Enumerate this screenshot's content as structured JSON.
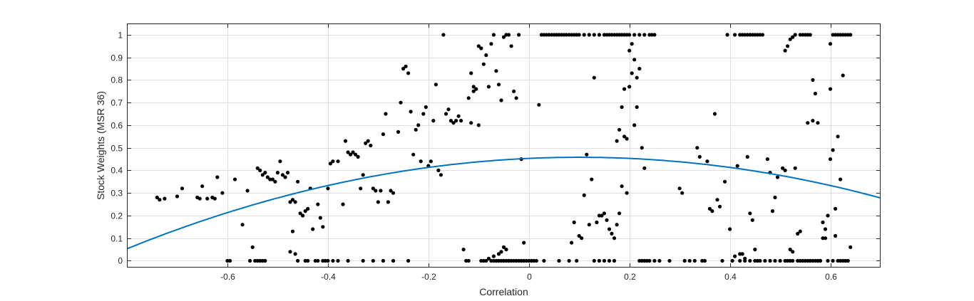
{
  "chart_data": {
    "type": "scatter",
    "title": "",
    "xlabel": "Correlation",
    "ylabel": "Stock Weights (MSR 36)",
    "xlim": [
      -0.8,
      0.7
    ],
    "ylim": [
      -0.03,
      1.05
    ],
    "xticks": [
      -0.6,
      -0.4,
      -0.2,
      0,
      0.2,
      0.4,
      0.6
    ],
    "xtick_labels": [
      "-0.6",
      "-0.4",
      "-0.2",
      "0",
      "0.2",
      "0.4",
      "0.6"
    ],
    "yticks": [
      0,
      0.1,
      0.2,
      0.3,
      0.4,
      0.5,
      0.6,
      0.7,
      0.8,
      0.9,
      1
    ],
    "ytick_labels": [
      "0",
      "0.1",
      "0.2",
      "0.3",
      "0.4",
      "0.5",
      "0.6",
      "0.7",
      "0.8",
      "0.9",
      "1"
    ],
    "grid": true,
    "marker_color": "#000000",
    "fit_color": "#0072BD",
    "fit_quadratic": {
      "a": -0.5,
      "b": 0.1,
      "c": 0.458
    },
    "points": [
      [
        -0.74,
        0.28
      ],
      [
        -0.735,
        0.27
      ],
      [
        -0.725,
        0.275
      ],
      [
        -0.7,
        0.285
      ],
      [
        -0.69,
        0.32
      ],
      [
        -0.66,
        0.28
      ],
      [
        -0.655,
        0.275
      ],
      [
        -0.65,
        0.33
      ],
      [
        -0.64,
        0.275
      ],
      [
        -0.63,
        0.28
      ],
      [
        -0.625,
        0.275
      ],
      [
        -0.62,
        0.37
      ],
      [
        -0.61,
        0.3
      ],
      [
        -0.6,
        0.0
      ],
      [
        -0.595,
        0.0
      ],
      [
        -0.585,
        0.36
      ],
      [
        -0.57,
        0.16
      ],
      [
        -0.56,
        0.31
      ],
      [
        -0.555,
        0.0
      ],
      [
        -0.55,
        0.06
      ],
      [
        -0.545,
        0.0
      ],
      [
        -0.54,
        0.0
      ],
      [
        -0.535,
        0.0
      ],
      [
        -0.53,
        0.0
      ],
      [
        -0.525,
        0.0
      ],
      [
        -0.54,
        0.41
      ],
      [
        -0.535,
        0.4
      ],
      [
        -0.53,
        0.38
      ],
      [
        -0.525,
        0.39
      ],
      [
        -0.52,
        0.37
      ],
      [
        -0.515,
        0.36
      ],
      [
        -0.51,
        0.36
      ],
      [
        -0.505,
        0.35
      ],
      [
        -0.5,
        0.39
      ],
      [
        -0.495,
        0.44
      ],
      [
        -0.49,
        0.38
      ],
      [
        -0.485,
        0.37
      ],
      [
        -0.48,
        0.39
      ],
      [
        -0.475,
        0.26
      ],
      [
        -0.47,
        0.27
      ],
      [
        -0.465,
        0.26
      ],
      [
        -0.46,
        0.35
      ],
      [
        -0.455,
        0.21
      ],
      [
        -0.45,
        0.2
      ],
      [
        -0.445,
        0.22
      ],
      [
        -0.44,
        0.23
      ],
      [
        -0.435,
        0.32
      ],
      [
        -0.43,
        0.14
      ],
      [
        -0.425,
        0.0
      ],
      [
        -0.42,
        0.0
      ],
      [
        -0.41,
        0.0
      ],
      [
        -0.405,
        0.0
      ],
      [
        -0.4,
        0.0
      ],
      [
        -0.39,
        0.0
      ],
      [
        -0.44,
        0.0
      ],
      [
        -0.445,
        0.0
      ],
      [
        -0.47,
        0.13
      ],
      [
        -0.475,
        0.04
      ],
      [
        -0.465,
        0.03
      ],
      [
        -0.46,
        0.0
      ],
      [
        -0.42,
        0.25
      ],
      [
        -0.415,
        0.19
      ],
      [
        -0.41,
        0.15
      ],
      [
        -0.4,
        0.32
      ],
      [
        -0.395,
        0.43
      ],
      [
        -0.39,
        0.44
      ],
      [
        -0.38,
        0.44
      ],
      [
        -0.37,
        0.25
      ],
      [
        -0.365,
        0.53
      ],
      [
        -0.36,
        0.48
      ],
      [
        -0.355,
        0.47
      ],
      [
        -0.35,
        0.48
      ],
      [
        -0.345,
        0.47
      ],
      [
        -0.34,
        0.46
      ],
      [
        -0.335,
        0.32
      ],
      [
        -0.33,
        0.38
      ],
      [
        -0.325,
        0.52
      ],
      [
        -0.32,
        0.53
      ],
      [
        -0.315,
        0.51
      ],
      [
        -0.31,
        0.32
      ],
      [
        -0.305,
        0.31
      ],
      [
        -0.3,
        0.26
      ],
      [
        -0.295,
        0.31
      ],
      [
        -0.29,
        0.56
      ],
      [
        -0.285,
        0.65
      ],
      [
        -0.28,
        0.26
      ],
      [
        -0.275,
        0.31
      ],
      [
        -0.27,
        0.3
      ],
      [
        -0.38,
        0.0
      ],
      [
        -0.36,
        0.0
      ],
      [
        -0.33,
        0.0
      ],
      [
        -0.31,
        0.0
      ],
      [
        -0.29,
        0.0
      ],
      [
        -0.27,
        0.0
      ],
      [
        -0.24,
        0.0
      ],
      [
        -0.26,
        0.57
      ],
      [
        -0.255,
        0.7
      ],
      [
        -0.25,
        0.85
      ],
      [
        -0.245,
        0.86
      ],
      [
        -0.24,
        0.83
      ],
      [
        -0.235,
        0.66
      ],
      [
        -0.23,
        0.47
      ],
      [
        -0.225,
        0.58
      ],
      [
        -0.22,
        0.6
      ],
      [
        -0.215,
        0.44
      ],
      [
        -0.21,
        0.65
      ],
      [
        -0.205,
        0.68
      ],
      [
        -0.2,
        0.42
      ],
      [
        -0.195,
        0.44
      ],
      [
        -0.19,
        0.62
      ],
      [
        -0.185,
        0.78
      ],
      [
        -0.18,
        0.4
      ],
      [
        -0.175,
        0.38
      ],
      [
        -0.17,
        1.0
      ],
      [
        -0.165,
        0.65
      ],
      [
        -0.16,
        0.67
      ],
      [
        -0.155,
        0.62
      ],
      [
        -0.15,
        0.61
      ],
      [
        -0.145,
        0.62
      ],
      [
        -0.14,
        0.64
      ],
      [
        -0.135,
        0.62
      ],
      [
        -0.13,
        0.05
      ],
      [
        -0.125,
        0.0
      ],
      [
        -0.12,
        0.0
      ],
      [
        -0.115,
        0.61
      ],
      [
        -0.11,
        0.75
      ],
      [
        -0.105,
        0.76
      ],
      [
        -0.1,
        0.6
      ],
      [
        -0.095,
        0.0
      ],
      [
        -0.09,
        0.0
      ],
      [
        -0.085,
        0.0
      ],
      [
        -0.08,
        0.01
      ],
      [
        -0.075,
        0.0
      ],
      [
        -0.07,
        0.02
      ],
      [
        -0.065,
        0.0
      ],
      [
        -0.06,
        0.03
      ],
      [
        -0.055,
        0.0
      ],
      [
        -0.05,
        0.0
      ],
      [
        -0.045,
        0.0
      ],
      [
        -0.04,
        0.0
      ],
      [
        -0.12,
        0.72
      ],
      [
        -0.115,
        0.83
      ],
      [
        -0.11,
        0.77
      ],
      [
        -0.1,
        0.95
      ],
      [
        -0.095,
        0.94
      ],
      [
        -0.09,
        0.87
      ],
      [
        -0.085,
        0.91
      ],
      [
        -0.08,
        0.77
      ],
      [
        -0.075,
        0.96
      ],
      [
        -0.07,
        1.0
      ],
      [
        -0.065,
        0.0
      ],
      [
        -0.06,
        0.0
      ],
      [
        -0.055,
        0.04
      ],
      [
        -0.05,
        0.06
      ],
      [
        -0.045,
        0.05
      ],
      [
        -0.04,
        0.0
      ],
      [
        -0.035,
        0.0
      ],
      [
        -0.03,
        0.0
      ],
      [
        -0.025,
        0.0
      ],
      [
        -0.02,
        0.0
      ],
      [
        -0.015,
        0.0
      ],
      [
        -0.01,
        0.0
      ],
      [
        -0.07,
        0.0
      ],
      [
        -0.065,
        0.84
      ],
      [
        -0.06,
        0.78
      ],
      [
        -0.055,
        0.71
      ],
      [
        -0.05,
        0.99
      ],
      [
        -0.045,
        1.0
      ],
      [
        -0.04,
        1.0
      ],
      [
        -0.035,
        0.95
      ],
      [
        -0.03,
        0.75
      ],
      [
        -0.025,
        0.72
      ],
      [
        -0.02,
        1.0
      ],
      [
        -0.015,
        0.45
      ],
      [
        -0.01,
        0.08
      ],
      [
        -0.005,
        0.0
      ],
      [
        0.0,
        0.0
      ],
      [
        0.005,
        0.0
      ],
      [
        0.01,
        0.0
      ],
      [
        0.015,
        0.0
      ],
      [
        0.02,
        0.69
      ],
      [
        0.025,
        1.0
      ],
      [
        0.03,
        1.0
      ],
      [
        0.035,
        1.0
      ],
      [
        0.04,
        1.0
      ],
      [
        0.045,
        1.0
      ],
      [
        0.05,
        1.0
      ],
      [
        0.055,
        1.0
      ],
      [
        0.06,
        1.0
      ],
      [
        0.065,
        1.0
      ],
      [
        0.07,
        1.0
      ],
      [
        0.075,
        1.0
      ],
      [
        0.08,
        1.0
      ],
      [
        0.085,
        1.0
      ],
      [
        0.09,
        1.0
      ],
      [
        0.095,
        1.0
      ],
      [
        -0.06,
        0.0
      ],
      [
        -0.05,
        0.0
      ],
      [
        -0.04,
        0.0
      ],
      [
        0.005,
        0.0
      ],
      [
        0.03,
        0.0
      ],
      [
        0.06,
        0.0
      ],
      [
        0.08,
        0.0
      ],
      [
        0.085,
        0.08
      ],
      [
        0.09,
        0.17
      ],
      [
        0.095,
        0.0
      ],
      [
        0.1,
        0.11
      ],
      [
        0.105,
        0.1
      ],
      [
        0.11,
        0.29
      ],
      [
        0.115,
        0.47
      ],
      [
        0.12,
        0.16
      ],
      [
        0.125,
        0.36
      ],
      [
        0.13,
        0.81
      ],
      [
        0.135,
        0.17
      ],
      [
        0.14,
        0.2
      ],
      [
        0.145,
        0.2
      ],
      [
        0.15,
        0.21
      ],
      [
        0.155,
        0.18
      ],
      [
        0.16,
        0.14
      ],
      [
        0.165,
        0.12
      ],
      [
        0.17,
        0.1
      ],
      [
        0.175,
        0.16
      ],
      [
        0.18,
        0.21
      ],
      [
        0.185,
        0.33
      ],
      [
        0.19,
        0.55
      ],
      [
        0.195,
        0.54
      ],
      [
        0.2,
        0.93
      ],
      [
        0.205,
        0.96
      ],
      [
        0.21,
        0.89
      ],
      [
        0.215,
        0.68
      ],
      [
        0.22,
        0.85
      ],
      [
        0.225,
        0.5
      ],
      [
        0.23,
        0.41
      ],
      [
        0.235,
        0.0
      ],
      [
        0.24,
        0.0
      ],
      [
        0.1,
        1.0
      ],
      [
        0.11,
        1.0
      ],
      [
        0.12,
        1.0
      ],
      [
        0.13,
        1.0
      ],
      [
        0.14,
        1.0
      ],
      [
        0.15,
        1.0
      ],
      [
        0.155,
        1.0
      ],
      [
        0.16,
        1.0
      ],
      [
        0.165,
        1.0
      ],
      [
        0.17,
        1.0
      ],
      [
        0.175,
        1.0
      ],
      [
        0.18,
        1.0
      ],
      [
        0.185,
        1.0
      ],
      [
        0.19,
        1.0
      ],
      [
        0.195,
        1.0
      ],
      [
        0.2,
        1.0
      ],
      [
        0.21,
        1.0
      ],
      [
        0.22,
        1.0
      ],
      [
        0.23,
        1.0
      ],
      [
        0.24,
        1.0
      ],
      [
        0.245,
        1.0
      ],
      [
        0.25,
        1.0
      ],
      [
        0.13,
        0.0
      ],
      [
        0.14,
        0.0
      ],
      [
        0.15,
        0.0
      ],
      [
        0.16,
        0.0
      ],
      [
        0.17,
        0.0
      ],
      [
        0.175,
        0.53
      ],
      [
        0.18,
        0.58
      ],
      [
        0.185,
        0.68
      ],
      [
        0.19,
        0.76
      ],
      [
        0.195,
        0.3
      ],
      [
        0.2,
        0.77
      ],
      [
        0.205,
        0.83
      ],
      [
        0.21,
        0.6
      ],
      [
        0.215,
        0.81
      ],
      [
        0.22,
        0.0
      ],
      [
        0.225,
        0.0
      ],
      [
        0.23,
        0.0
      ],
      [
        0.25,
        0.0
      ],
      [
        0.26,
        0.0
      ],
      [
        0.28,
        0.0
      ],
      [
        0.3,
        0.32
      ],
      [
        0.305,
        0.3
      ],
      [
        0.31,
        0.0
      ],
      [
        0.32,
        0.0
      ],
      [
        0.33,
        0.0
      ],
      [
        0.335,
        0.5
      ],
      [
        0.34,
        0.46
      ],
      [
        0.345,
        0.0
      ],
      [
        0.35,
        0.0
      ],
      [
        0.355,
        0.44
      ],
      [
        0.36,
        0.23
      ],
      [
        0.365,
        0.22
      ],
      [
        0.37,
        0.65
      ],
      [
        0.375,
        0.27
      ],
      [
        0.38,
        0.24
      ],
      [
        0.385,
        0.0
      ],
      [
        0.39,
        0.35
      ],
      [
        0.395,
        1.0
      ],
      [
        0.4,
        0.14
      ],
      [
        0.405,
        0.0
      ],
      [
        0.41,
        0.02
      ],
      [
        0.415,
        0.42
      ],
      [
        0.42,
        0.0
      ],
      [
        0.425,
        0.03
      ],
      [
        0.43,
        0.01
      ],
      [
        0.435,
        0.46
      ],
      [
        0.44,
        0.21
      ],
      [
        0.445,
        0.18
      ],
      [
        0.45,
        0.0
      ],
      [
        0.41,
        1.0
      ],
      [
        0.42,
        1.0
      ],
      [
        0.425,
        1.0
      ],
      [
        0.43,
        1.0
      ],
      [
        0.435,
        1.0
      ],
      [
        0.44,
        1.0
      ],
      [
        0.445,
        1.0
      ],
      [
        0.45,
        1.0
      ],
      [
        0.455,
        1.0
      ],
      [
        0.46,
        1.0
      ],
      [
        0.465,
        1.0
      ],
      [
        0.42,
        0.03
      ],
      [
        0.43,
        0.0
      ],
      [
        0.44,
        0.0
      ],
      [
        0.45,
        0.05
      ],
      [
        0.455,
        0.0
      ],
      [
        0.46,
        0.0
      ],
      [
        0.47,
        0.0
      ],
      [
        0.475,
        0.45
      ],
      [
        0.48,
        0.39
      ],
      [
        0.485,
        0.22
      ],
      [
        0.49,
        0.28
      ],
      [
        0.495,
        0.37
      ],
      [
        0.5,
        0.0
      ],
      [
        0.505,
        0.41
      ],
      [
        0.51,
        0.4
      ],
      [
        0.515,
        0.0
      ],
      [
        0.52,
        0.05
      ],
      [
        0.525,
        0.04
      ],
      [
        0.53,
        0.41
      ],
      [
        0.535,
        0.12
      ],
      [
        0.54,
        0.13
      ],
      [
        0.545,
        0.0
      ],
      [
        0.55,
        0.0
      ],
      [
        0.555,
        0.61
      ],
      [
        0.56,
        0.0
      ],
      [
        0.565,
        0.62
      ],
      [
        0.57,
        0.74
      ],
      [
        0.575,
        0.61
      ],
      [
        0.58,
        0.0
      ],
      [
        0.585,
        0.1
      ],
      [
        0.59,
        0.1
      ],
      [
        0.595,
        0.0
      ],
      [
        0.6,
        0.76
      ],
      [
        0.605,
        0.0
      ],
      [
        0.61,
        0.11
      ],
      [
        0.615,
        0.0
      ],
      [
        0.62,
        0.36
      ],
      [
        0.625,
        0.82
      ],
      [
        0.63,
        0.0
      ],
      [
        0.635,
        0.0
      ],
      [
        0.64,
        0.06
      ],
      [
        0.51,
        0.93
      ],
      [
        0.515,
        0.95
      ],
      [
        0.52,
        0.98
      ],
      [
        0.525,
        0.99
      ],
      [
        0.53,
        1.0
      ],
      [
        0.54,
        1.0
      ],
      [
        0.545,
        1.0
      ],
      [
        0.55,
        1.0
      ],
      [
        0.555,
        1.0
      ],
      [
        0.56,
        1.0
      ],
      [
        0.565,
        0.8
      ],
      [
        0.57,
        0.0
      ],
      [
        0.575,
        0.0
      ],
      [
        0.58,
        0.0
      ],
      [
        0.585,
        0.17
      ],
      [
        0.59,
        0.14
      ],
      [
        0.595,
        0.2
      ],
      [
        0.6,
        0.96
      ],
      [
        0.605,
        1.0
      ],
      [
        0.61,
        1.0
      ],
      [
        0.615,
        1.0
      ],
      [
        0.62,
        1.0
      ],
      [
        0.625,
        1.0
      ],
      [
        0.63,
        1.0
      ],
      [
        0.635,
        1.0
      ],
      [
        0.64,
        1.0
      ],
      [
        0.6,
        0.45
      ],
      [
        0.605,
        0.49
      ],
      [
        0.61,
        0.23
      ],
      [
        0.615,
        0.55
      ],
      [
        0.62,
        0.0
      ],
      [
        0.625,
        0.0
      ],
      [
        0.63,
        0.0
      ],
      [
        0.635,
        0.0
      ],
      [
        0.58,
        0.0
      ],
      [
        0.575,
        0.0
      ],
      [
        0.565,
        0.0
      ],
      [
        0.56,
        0.0
      ],
      [
        0.555,
        0.0
      ],
      [
        0.54,
        0.0
      ],
      [
        0.535,
        0.0
      ],
      [
        0.525,
        0.0
      ],
      [
        0.52,
        0.0
      ],
      [
        0.51,
        0.0
      ],
      [
        0.49,
        0.0
      ],
      [
        0.48,
        0.0
      ]
    ]
  }
}
